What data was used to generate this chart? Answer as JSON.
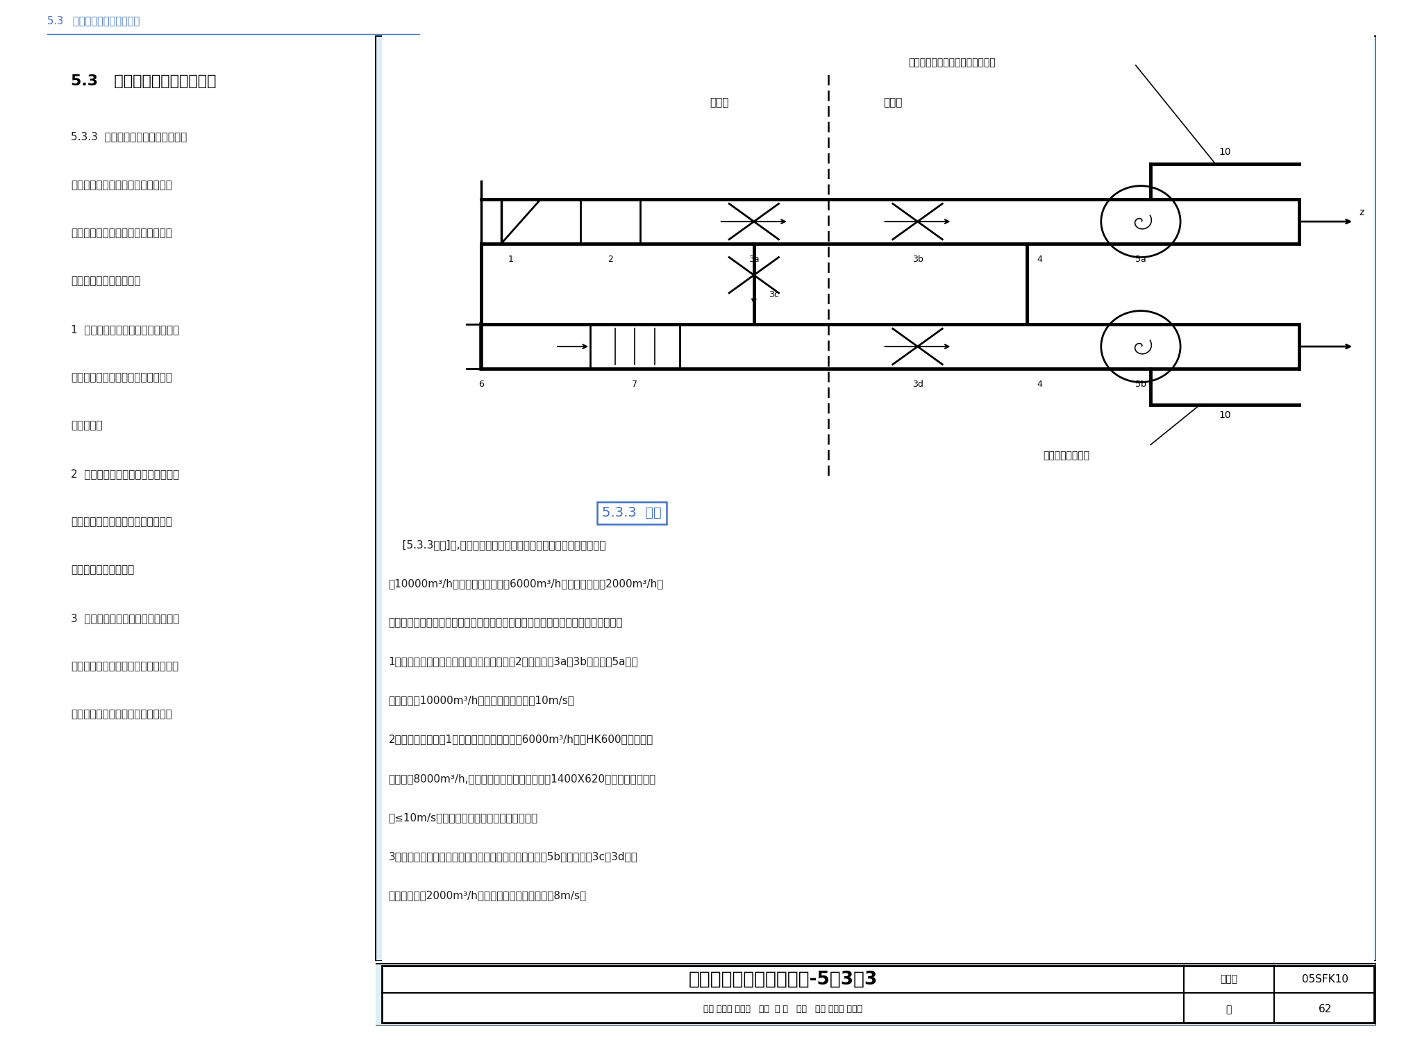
{
  "breadcrumb": "5.3   平战结合及平战功能转换",
  "section_title": "5.3   平战结合及平战功能转换",
  "left_text_lines": [
    "5.3.3  防空地下室平时和战时合用一",
    "个通风系统时，应按平时和战时工况",
    "分别计算系统的新风量，并按下列规",
    "定选用通风和防护设备。",
    "1  按最大的计算新风量选用清洁通风",
    "管管径、粗过滤器、密闭阀门和通风",
    "机等设备；",
    "2  按战时清洁通风的计算新风量选用",
    "门式防爆波活门，并按门扇开启时的",
    "平时通风量进行校核；",
    "3  按战时滤毒通风的计算新风量选用",
    "滤毒进（排）风管路上的过滤吸收器、",
    "滤毒风机、滤毒通风管及密闭阀门。"
  ],
  "annotation_top": "平时风管与战时清洁式通风管共用",
  "annotation_bottom": "战时滤毒式通风管",
  "label_randu": "染毒区",
  "label_qingjie": "清洁区",
  "diagram_label": "5.3.3  图示",
  "body_text_lines": [
    "    [5.3.3图示]中,防空地下室平时与战时共用一套通风系统。平时新风",
    "量10000m³/h，战时清洁式新风量6000m³/h，滤毒式新风量2000m³/h。",
    "其中平时新风管和战时清洁式通风管共用通风管道。在设计风管时应注意以下几点：",
    "1、平时与战时清洁式新风管的管径、粗滤器2、密闭阀门3a、3b和新风机5a根据",
    "最大新风量10000m³/h选取，风速不宜大于10m/s；",
    "2、门式防爆波活门1应根据战时清洁式新风量6000m³/h选取HK600型，安全区",
    "最大风量8000m³/h,平时活门打开，新风从门洞（1400X620）中进入，平时风",
    "速≤10m/s，经校核满足平时及战时通风要求。",
    "3、战时滤毒式通风管的管径、过滤吸收器、滤毒式风机5b及密闭阀门3c、3d根据",
    "滤毒式新风量2000m³/h选取，风管内风速不应大于8m/s。"
  ],
  "footer_title": "平战结合及平战功能转换-5．3．3",
  "footer_tuji": "图集号",
  "footer_code": "05SFK10",
  "footer_credits": "审核 耿世彤 耿世彤   校对  范 勇   龙多   设计 杨盛旭 杨盛旭",
  "footer_page_label": "页",
  "footer_page": "62",
  "bg_color": "#deeef7",
  "white": "#ffffff",
  "black": "#000000",
  "blue": "#4472c4",
  "text_dark": "#1a1a1a"
}
